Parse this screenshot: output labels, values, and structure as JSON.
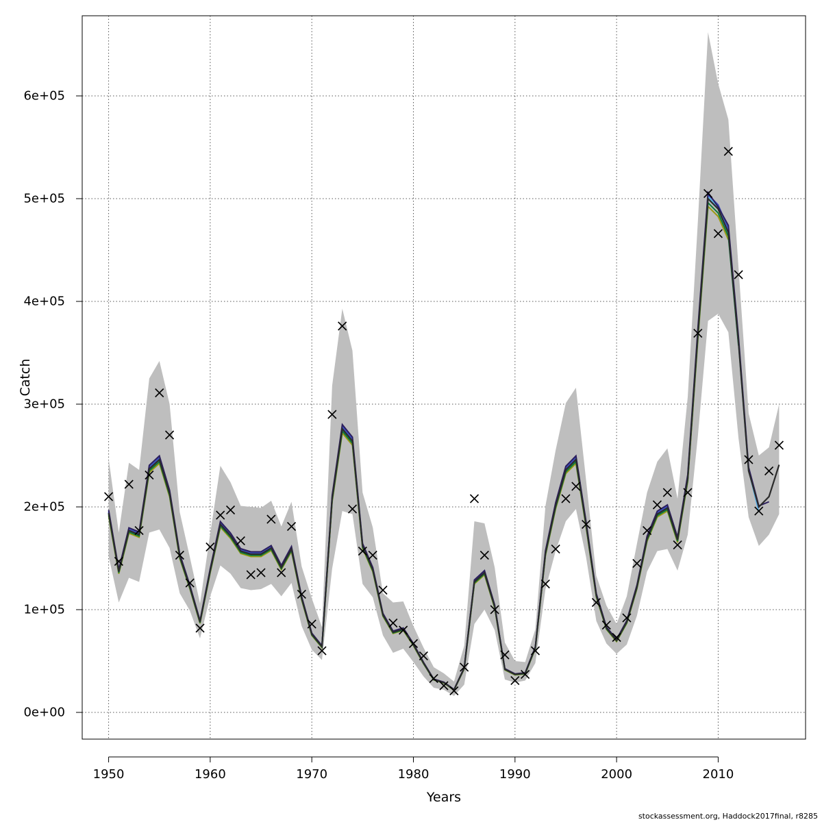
{
  "chart_data": {
    "type": "line",
    "xlabel": "Years",
    "ylabel": "Catch",
    "xlim": [
      1947.4,
      2018.6
    ],
    "ylim": [
      -26000,
      678000
    ],
    "x_ticks": [
      1950,
      1960,
      1970,
      1980,
      1990,
      2000,
      2010
    ],
    "y_ticks": [
      0,
      100000,
      200000,
      300000,
      400000,
      500000,
      600000
    ],
    "y_tick_labels": [
      "0e+00",
      "1e+05",
      "2e+05",
      "3e+05",
      "4e+05",
      "5e+05",
      "6e+05"
    ],
    "grid": true,
    "colors": {
      "band": "#bebebe",
      "fit": "#2b2b2b",
      "observed": "#000000",
      "retro": [
        "#2c1f5e",
        "#3b4cc0",
        "#5ab4e8",
        "#22a39a",
        "#0e7a3a",
        "#9a9a12"
      ]
    },
    "confidence_band": {
      "years": [
        1950,
        1951,
        1952,
        1953,
        1954,
        1955,
        1956,
        1957,
        1958,
        1959,
        1960,
        1961,
        1962,
        1963,
        1964,
        1965,
        1966,
        1967,
        1968,
        1969,
        1970,
        1971,
        1972,
        1973,
        1974,
        1975,
        1976,
        1977,
        1978,
        1979,
        1980,
        1981,
        1982,
        1983,
        1984,
        1985,
        1986,
        1987,
        1988,
        1989,
        1990,
        1991,
        1992,
        1993,
        1994,
        1995,
        1996,
        1997,
        1998,
        1999,
        2000,
        2001,
        2002,
        2003,
        2004,
        2005,
        2006,
        2007,
        2008,
        2009,
        2010,
        2011,
        2012,
        2013,
        2014,
        2015,
        2016
      ],
      "lower": [
        152000,
        107000,
        131000,
        127000,
        175000,
        178000,
        160000,
        116000,
        99000,
        72000,
        113000,
        143000,
        135000,
        121000,
        119000,
        120000,
        125000,
        113000,
        126000,
        84000,
        61000,
        51000,
        140000,
        196000,
        193000,
        125000,
        112000,
        75000,
        58000,
        62000,
        49000,
        35000,
        24000,
        22000,
        16000,
        27000,
        86000,
        100000,
        80000,
        32000,
        29000,
        31000,
        48000,
        120000,
        157000,
        186000,
        198000,
        151000,
        89000,
        67000,
        57000,
        66000,
        94000,
        137000,
        157000,
        159000,
        138000,
        173000,
        269000,
        381000,
        388000,
        370000,
        267000,
        190000,
        162000,
        173000,
        193000
      ],
      "upper": [
        247000,
        175000,
        243000,
        236000,
        325000,
        342000,
        300000,
        195000,
        151000,
        106000,
        174000,
        240000,
        224000,
        201000,
        200000,
        199000,
        206000,
        181000,
        205000,
        142000,
        111000,
        83000,
        318000,
        393000,
        352000,
        214000,
        180000,
        116000,
        107000,
        108000,
        84000,
        63000,
        44000,
        38000,
        30000,
        65000,
        186000,
        184000,
        141000,
        68000,
        50000,
        49000,
        81000,
        201000,
        255000,
        301000,
        316000,
        226000,
        133000,
        104000,
        86000,
        113000,
        164000,
        214000,
        244000,
        257000,
        208000,
        307000,
        478000,
        662000,
        612000,
        577000,
        433000,
        291000,
        250000,
        258000,
        300000
      ]
    },
    "series": [
      {
        "name": "",
        "years": [
          1950,
          1951,
          1952,
          1953,
          1954,
          1955,
          1956,
          1957,
          1958,
          1959,
          1960,
          1961,
          1962,
          1963,
          1964,
          1965,
          1966,
          1967,
          1968,
          1969,
          1970,
          1971,
          1972,
          1973,
          1974,
          1975,
          1976,
          1977,
          1978,
          1979,
          1980,
          1981,
          1982,
          1983,
          1984,
          1985,
          1986,
          1987,
          1988,
          1989,
          1990,
          1991,
          1992,
          1993,
          1994,
          1995,
          1996,
          1997,
          1998,
          1999,
          2000,
          2001,
          2002,
          2003,
          2004,
          2005,
          2006,
          2007,
          2008,
          2009,
          2010,
          2011,
          2012,
          2013,
          2014,
          2015,
          2016
        ],
        "values": [
          194000,
          137000,
          177000,
          173000,
          237000,
          246000,
          213000,
          152000,
          122000,
          88000,
          138000,
          183000,
          172000,
          157000,
          154000,
          154000,
          160000,
          141000,
          159000,
          111000,
          76000,
          64000,
          208000,
          276000,
          264000,
          162000,
          139000,
          95000,
          78000,
          81000,
          66000,
          48000,
          32000,
          29000,
          22000,
          43000,
          127000,
          136000,
          103000,
          42000,
          37000,
          38000,
          63000,
          155000,
          201000,
          236000,
          246000,
          183000,
          114000,
          82000,
          70000,
          88000,
          122000,
          169000,
          193000,
          199000,
          168000,
          228000,
          368000,
          500000,
          490000,
          467000,
          360000,
          235000,
          200000,
          210000,
          241000
        ]
      }
    ],
    "retrospective_peels": [
      {
        "color_key": 0,
        "to": 2014,
        "v2014": 201000,
        "v2015": 205000,
        "v2009": 506000,
        "v2010": 492000
      },
      {
        "color_key": 1,
        "to": 2014,
        "v2014": 199000
      },
      {
        "color_key": 2,
        "to": 2014,
        "v2014": 195000
      },
      {
        "color_key": 3,
        "to": 2013
      },
      {
        "color_key": 4,
        "to": 2012
      },
      {
        "color_key": 5,
        "to": 2011
      }
    ],
    "observed": {
      "years": [
        1950,
        1951,
        1952,
        1953,
        1954,
        1955,
        1956,
        1957,
        1958,
        1959,
        1960,
        1961,
        1962,
        1963,
        1964,
        1965,
        1966,
        1967,
        1968,
        1969,
        1970,
        1971,
        1972,
        1973,
        1974,
        1975,
        1976,
        1977,
        1978,
        1979,
        1980,
        1981,
        1982,
        1983,
        1984,
        1985,
        1986,
        1987,
        1988,
        1989,
        1990,
        1991,
        1992,
        1993,
        1994,
        1995,
        1996,
        1997,
        1998,
        1999,
        2000,
        2001,
        2002,
        2003,
        2004,
        2005,
        2006,
        2007,
        2008,
        2009,
        2010,
        2011,
        2012,
        2013,
        2014,
        2015,
        2016
      ],
      "values": [
        210000,
        147000,
        222000,
        177000,
        231000,
        311000,
        270000,
        153000,
        126000,
        82000,
        161000,
        192000,
        197000,
        167000,
        134000,
        136000,
        188000,
        136000,
        181000,
        115000,
        86000,
        60000,
        290000,
        376000,
        198000,
        157000,
        153000,
        119000,
        87000,
        80000,
        67000,
        55000,
        33000,
        26000,
        21000,
        44000,
        208000,
        153000,
        100000,
        56000,
        31000,
        37000,
        60000,
        125000,
        159000,
        208000,
        220000,
        183000,
        107000,
        85000,
        73000,
        92000,
        145000,
        177000,
        202000,
        214000,
        163000,
        214000,
        369000,
        505000,
        466000,
        546000,
        426000,
        246000,
        196000,
        235000,
        260000
      ]
    }
  },
  "footer": {
    "credit": "stockassessment.org, Haddock2017final, r8285"
  }
}
